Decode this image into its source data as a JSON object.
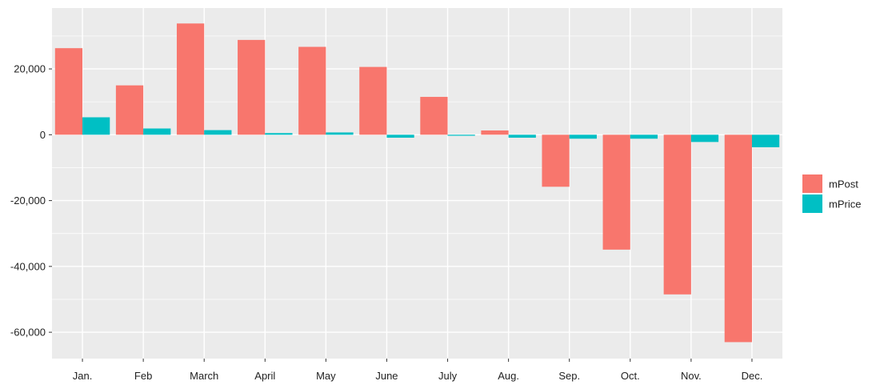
{
  "chart_data": {
    "type": "bar",
    "title": "",
    "xlabel": "",
    "ylabel": "",
    "categories": [
      "Jan.",
      "Feb",
      "March",
      "April",
      "May",
      "June",
      "July",
      "Aug.",
      "Sep.",
      "Oct.",
      "Nov.",
      "Dec."
    ],
    "series": [
      {
        "name": "mPost",
        "color": "#F8766D",
        "values": [
          26300,
          15000,
          33800,
          28800,
          26700,
          20600,
          11500,
          1300,
          -15800,
          -34900,
          -48500,
          -63000
        ]
      },
      {
        "name": "mPrice",
        "color": "#00BFC4",
        "values": [
          5300,
          1900,
          1400,
          500,
          700,
          -900,
          -300,
          -900,
          -1200,
          -1200,
          -2200,
          -3800
        ]
      }
    ],
    "ylim": [
      -68000,
      38500
    ],
    "yticks": [
      20000,
      0,
      -20000,
      -40000,
      -60000
    ],
    "ytick_labels": [
      "20,000",
      "0",
      "-20,000",
      "-40,000",
      "-60,000"
    ],
    "grid": true,
    "legend_position": "right",
    "panel_background": "#EBEBEB",
    "gridline_color": "#FFFFFF"
  }
}
